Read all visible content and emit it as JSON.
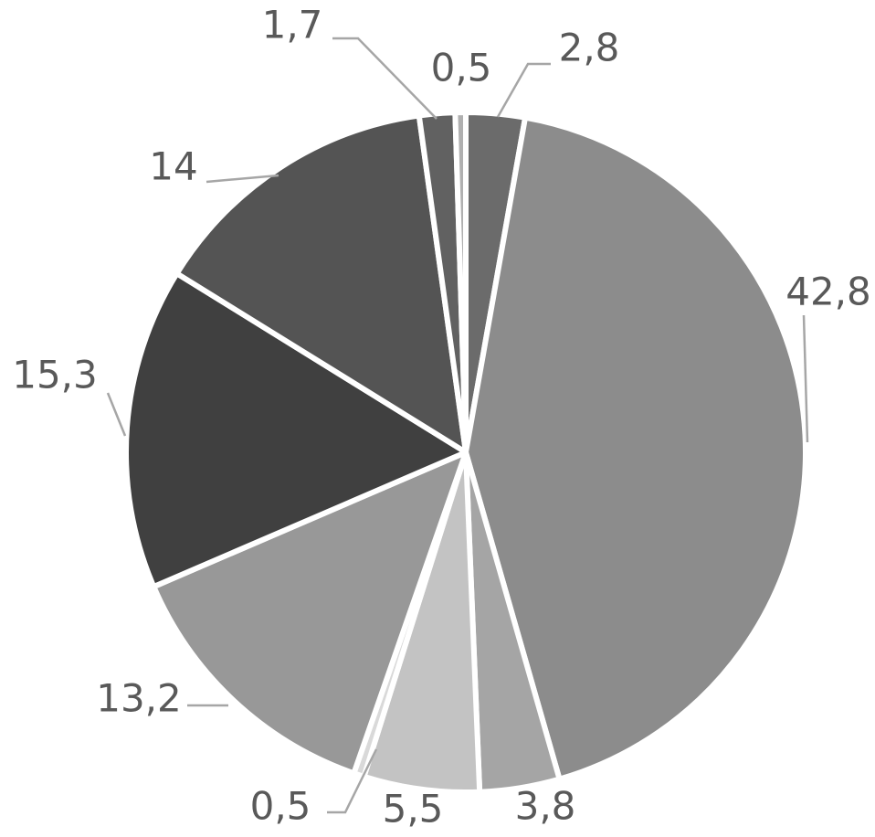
{
  "chart_data": {
    "type": "pie",
    "title": "",
    "values": [
      2.8,
      42.8,
      3.8,
      5.5,
      0.5,
      13.2,
      15.3,
      14,
      1.7,
      0.5
    ],
    "labels": [
      "2,8",
      "42,8",
      "3,8",
      "5,5",
      "0,5",
      "13,2",
      "15,3",
      "14",
      "1,7",
      "0,5"
    ],
    "colors": [
      "#6b6b6b",
      "#8c8c8c",
      "#a5a5a5",
      "#c3c3c3",
      "#d9d9d9",
      "#989898",
      "#404040",
      "#545454",
      "#616161",
      "#b0b0b0"
    ],
    "start_angle_deg": 0,
    "direction": "clockwise",
    "legend": "none"
  }
}
